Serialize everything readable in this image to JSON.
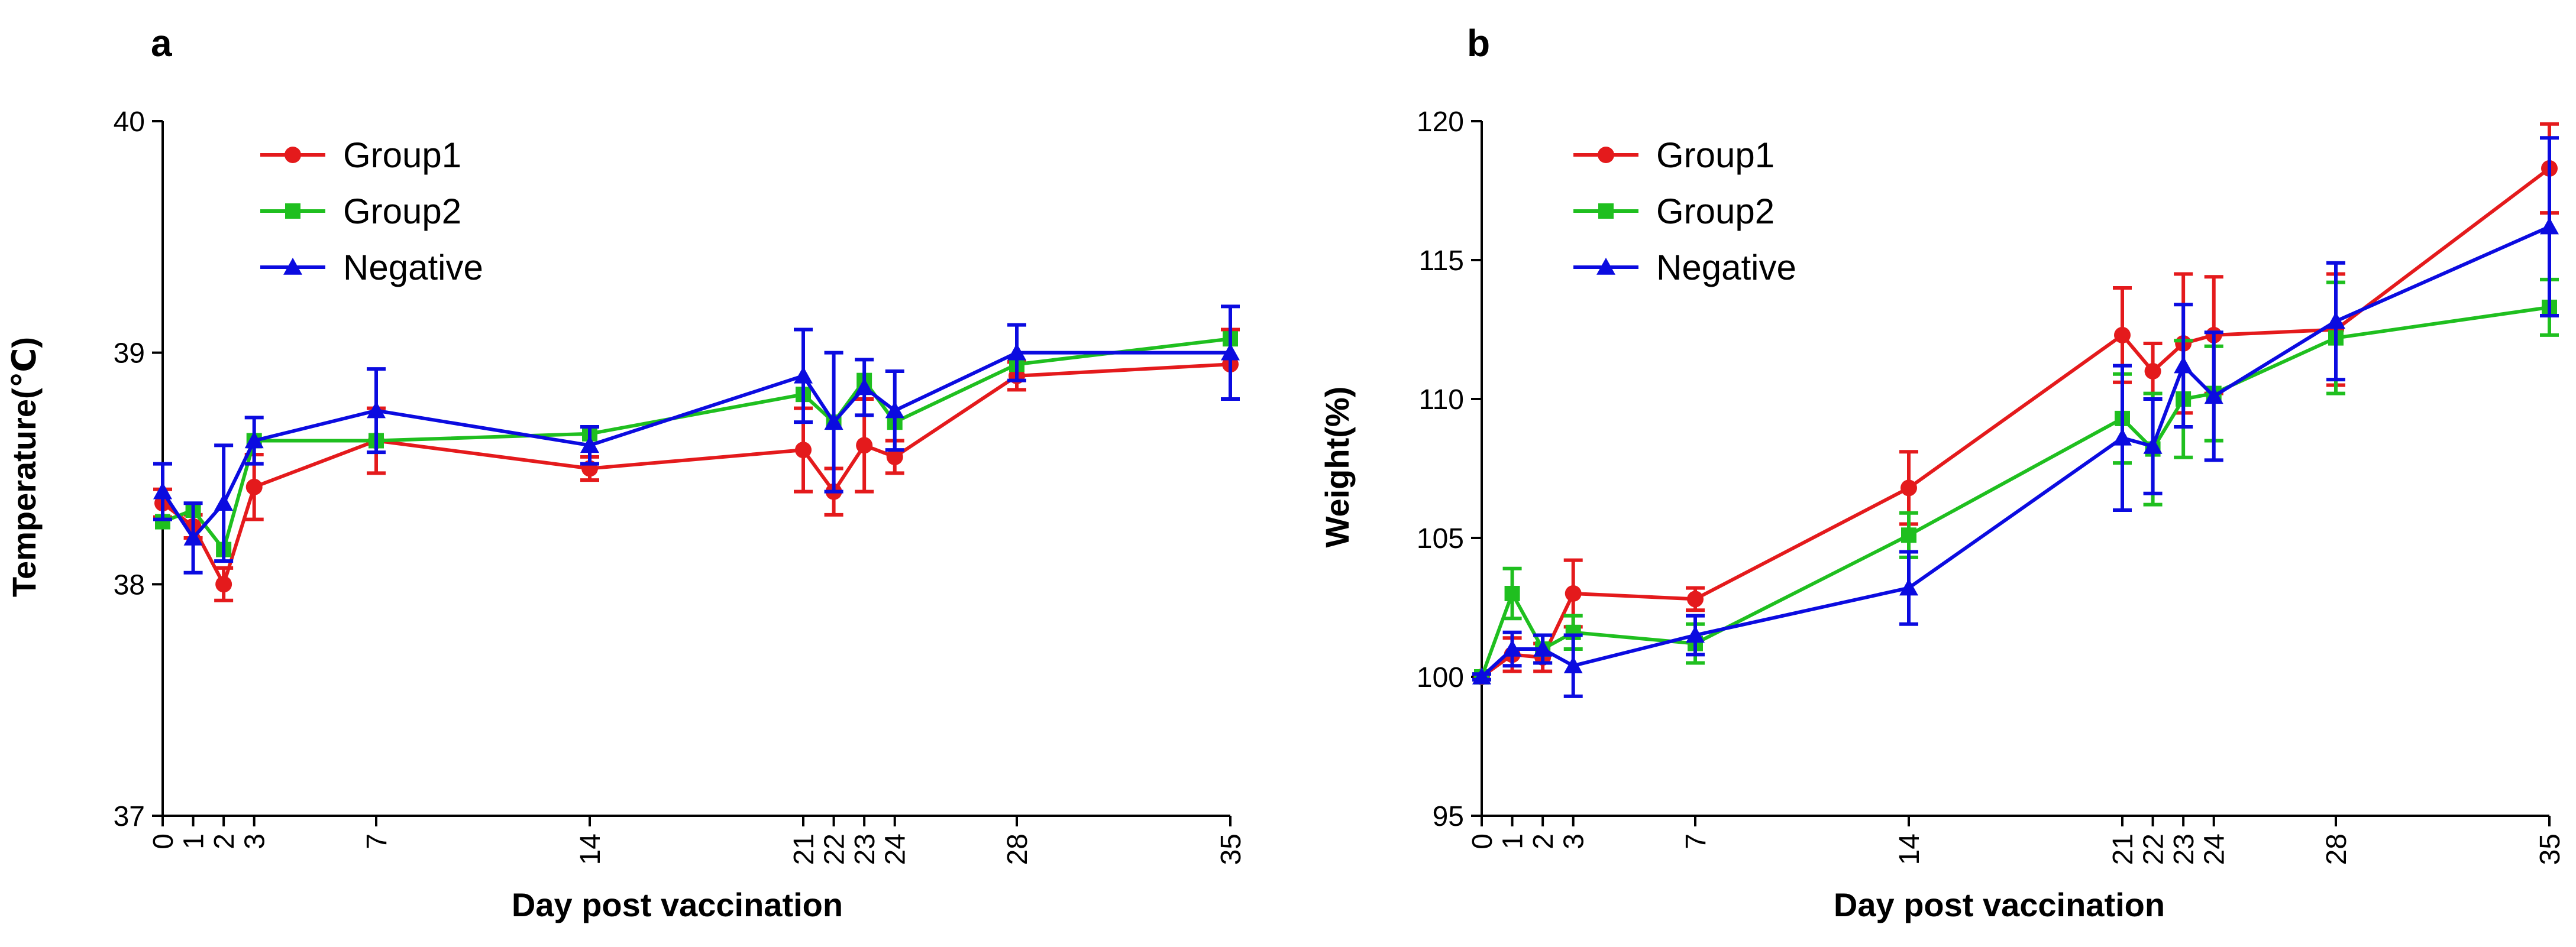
{
  "chart_data": [
    {
      "type": "line",
      "panel_label": "a",
      "xlabel": "Day post vaccination",
      "ylabel": "Temperature(℃)",
      "ylim": [
        37,
        40
      ],
      "yticks": [
        37,
        38,
        39,
        40
      ],
      "xlim": [
        0,
        35
      ],
      "xticks": [
        0,
        1,
        2,
        3,
        7,
        14,
        21,
        22,
        23,
        24,
        28,
        35
      ],
      "x": [
        0,
        1,
        2,
        3,
        7,
        14,
        21,
        22,
        23,
        24,
        28,
        35
      ],
      "legend_position": "top-left",
      "series": [
        {
          "name": "Group1",
          "color": "#e41a1c",
          "marker": "circle",
          "values": [
            38.35,
            38.25,
            38.0,
            38.42,
            38.62,
            38.5,
            38.58,
            38.4,
            38.6,
            38.55,
            38.9,
            38.95
          ],
          "errors": [
            0.06,
            0.05,
            0.07,
            0.14,
            0.14,
            0.05,
            0.18,
            0.1,
            0.2,
            0.07,
            0.06,
            0.15
          ]
        },
        {
          "name": "Group2",
          "color": "#1fbf1f",
          "marker": "square",
          "values": [
            38.27,
            38.32,
            38.15,
            38.62,
            38.62,
            38.65,
            38.82,
            38.7,
            38.88,
            38.7,
            38.95,
            39.06
          ]
        },
        {
          "name": "Negative",
          "color": "#0b0be0",
          "marker": "triangle",
          "values": [
            38.4,
            38.2,
            38.35,
            38.62,
            38.75,
            38.6,
            38.9,
            38.7,
            38.85,
            38.75,
            39.0,
            39.0
          ],
          "errors": [
            0.12,
            0.15,
            0.25,
            0.1,
            0.18,
            0.08,
            0.2,
            0.3,
            0.12,
            0.17,
            0.12,
            0.2
          ]
        }
      ]
    },
    {
      "type": "line",
      "panel_label": "b",
      "xlabel": "Day post vaccination",
      "ylabel": "Weight(%)",
      "ylim": [
        95,
        120
      ],
      "yticks": [
        95,
        100,
        105,
        110,
        115,
        120
      ],
      "xlim": [
        0,
        35
      ],
      "xticks": [
        0,
        1,
        2,
        3,
        7,
        14,
        21,
        22,
        23,
        24,
        28,
        35
      ],
      "x": [
        0,
        1,
        2,
        3,
        7,
        14,
        21,
        22,
        23,
        24,
        28,
        35
      ],
      "legend_position": "top-left",
      "series": [
        {
          "name": "Group1",
          "color": "#e41a1c",
          "marker": "circle",
          "values": [
            100,
            100.8,
            100.7,
            103.0,
            102.8,
            106.8,
            112.3,
            111.0,
            112.0,
            112.3,
            112.5,
            118.3
          ],
          "errors": [
            0.1,
            0.6,
            0.5,
            1.2,
            0.4,
            1.3,
            1.7,
            1.0,
            2.5,
            2.1,
            2.0,
            1.6
          ]
        },
        {
          "name": "Group2",
          "color": "#1fbf1f",
          "marker": "square",
          "values": [
            100,
            103.0,
            101.0,
            101.6,
            101.2,
            105.1,
            109.3,
            108.2,
            110.0,
            110.2,
            112.2,
            113.3
          ],
          "errors": [
            0.1,
            0.9,
            0.5,
            0.6,
            0.7,
            0.8,
            1.6,
            2.0,
            2.1,
            1.7,
            2.0,
            1.0
          ]
        },
        {
          "name": "Negative",
          "color": "#0b0be0",
          "marker": "triangle",
          "values": [
            100,
            101.0,
            101.0,
            100.4,
            101.5,
            103.2,
            108.6,
            108.3,
            111.2,
            110.1,
            112.8,
            116.2
          ],
          "errors": [
            0.1,
            0.6,
            0.5,
            1.1,
            0.7,
            1.3,
            2.6,
            1.7,
            2.2,
            2.3,
            2.1,
            3.2
          ]
        }
      ]
    }
  ]
}
